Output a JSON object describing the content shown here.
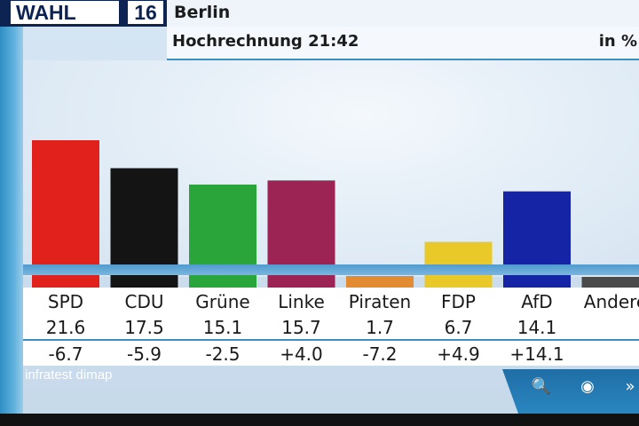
{
  "header": {
    "logo_text": "WAHL",
    "logo_year": "16",
    "state": "Berlin",
    "subtitle": "Hochrechnung 21:42",
    "unit": "in %"
  },
  "source": "infratest dimap",
  "controls": [
    {
      "icon": "search-icon",
      "glyph": "🔍"
    },
    {
      "icon": "record-icon",
      "glyph": "◉"
    },
    {
      "icon": "forward-icon",
      "glyph": "»"
    }
  ],
  "colors": {
    "SPD": "#e1211c",
    "CDU": "#141414",
    "Grüne": "#2aa53a",
    "Linke": "#9b2454",
    "Piraten": "#e38b33",
    "FDP": "#e9c92a",
    "AfD": "#1424a4",
    "Andere": "#4a4a4a"
  },
  "chart_data": {
    "type": "bar",
    "categories": [
      "SPD",
      "CDU",
      "Grüne",
      "Linke",
      "Piraten",
      "FDP",
      "AfD",
      "Andere"
    ],
    "values": [
      21.6,
      17.5,
      15.1,
      15.7,
      1.7,
      6.7,
      14.1,
      null
    ],
    "value_labels": [
      "21.6",
      "17.5",
      "15.1",
      "15.7",
      "1.7",
      "6.7",
      "14.1",
      ""
    ],
    "change_labels": [
      "-6.7",
      "-5.9",
      "-2.5",
      "+4.0",
      "-7.2",
      "+4.9",
      "+14.1",
      ""
    ],
    "category_labels": [
      "SPD",
      "CDU",
      "Grüne",
      "Linke",
      "Piraten",
      "FDP",
      "AfD",
      "Andere"
    ],
    "title": "Hochrechnung 21:42",
    "ylabel": "in %",
    "ylim": [
      0,
      22
    ],
    "grid": false,
    "legend": "none"
  }
}
